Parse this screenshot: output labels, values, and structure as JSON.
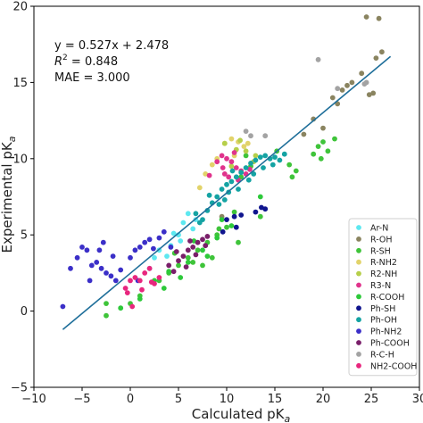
{
  "chart_data": {
    "type": "scatter",
    "title": "",
    "xlabel": "Calculated pK",
    "xlabel_sub": "a",
    "ylabel": "Experimental pK",
    "ylabel_sub": "a",
    "xlim": [
      -10,
      30
    ],
    "ylim": [
      -5,
      20
    ],
    "x_ticks": [
      -10,
      -5,
      0,
      5,
      10,
      15,
      20,
      25,
      30
    ],
    "y_ticks": [
      -5,
      0,
      5,
      10,
      15,
      20
    ],
    "grid": false,
    "legend_placement": "lower-right",
    "annotations": {
      "equation": "y = 0.527x + 2.478",
      "r2_prefix": "R",
      "r2_sup": "2",
      "r2_value": " = 0.848",
      "mae": "MAE = 3.000"
    },
    "fit_line": {
      "color": "#1f6f9a",
      "slope": 0.527,
      "intercept": 2.478,
      "x_range": [
        -7,
        27
      ]
    },
    "series": [
      {
        "name": "Ar-N",
        "color": "#5de8f0",
        "points": [
          [
            2.5,
            3.5
          ],
          [
            3.0,
            4.0
          ],
          [
            4.2,
            4.3
          ],
          [
            5.0,
            5.0
          ],
          [
            5.5,
            5.8
          ],
          [
            6.0,
            6.4
          ],
          [
            3.8,
            3.6
          ],
          [
            6.5,
            5.4
          ],
          [
            2.0,
            2.8
          ],
          [
            5.2,
            4.6
          ],
          [
            4.5,
            5.1
          ],
          [
            6.8,
            6.0
          ]
        ]
      },
      {
        "name": "R-OH",
        "color": "#8a8460",
        "points": [
          [
            24.5,
            19.3
          ],
          [
            25.8,
            19.2
          ],
          [
            26.1,
            17.0
          ],
          [
            25.5,
            16.6
          ],
          [
            24.0,
            15.6
          ],
          [
            23.0,
            15.0
          ],
          [
            22.0,
            14.5
          ],
          [
            21.0,
            14.0
          ],
          [
            24.8,
            14.2
          ],
          [
            19.0,
            12.6
          ],
          [
            20.0,
            12.0
          ],
          [
            18.0,
            11.6
          ],
          [
            21.5,
            13.6
          ],
          [
            25.2,
            14.3
          ],
          [
            22.5,
            14.8
          ],
          [
            9.5,
            6.2
          ]
        ]
      },
      {
        "name": "R-SH",
        "color": "#3fc43a",
        "points": [
          [
            -2.5,
            0.5
          ],
          [
            0,
            0.5
          ],
          [
            1,
            1
          ],
          [
            3,
            2
          ],
          [
            4,
            2.5
          ],
          [
            5,
            3
          ],
          [
            6,
            3.5
          ],
          [
            7,
            4
          ],
          [
            8,
            4.5
          ],
          [
            9,
            5
          ],
          [
            10,
            5.5
          ],
          [
            8.5,
            3.5
          ],
          [
            7.5,
            3.0
          ],
          [
            6.5,
            3.2
          ],
          [
            -2.5,
            -0.3
          ],
          [
            19.5,
            10.8
          ],
          [
            20.0,
            11.1
          ],
          [
            20.5,
            10.5
          ],
          [
            19.0,
            10.3
          ],
          [
            19.8,
            10.0
          ],
          [
            21.2,
            11.3
          ],
          [
            16.5,
            9.6
          ],
          [
            17.2,
            9.2
          ],
          [
            16.8,
            8.8
          ],
          [
            15.2,
            10.5
          ],
          [
            12.0,
            10.2
          ],
          [
            11.5,
            8.8
          ],
          [
            12.5,
            9.5
          ],
          [
            10.8,
            6.5
          ],
          [
            13.5,
            6.2
          ],
          [
            11.2,
            4.5
          ],
          [
            9.2,
            5.4
          ],
          [
            4.6,
            3.8
          ]
        ]
      },
      {
        "name": "R-NH2",
        "color": "#e2d36a",
        "points": [
          [
            9.0,
            10.0
          ],
          [
            9.8,
            11.0
          ],
          [
            10.5,
            11.3
          ],
          [
            11.2,
            11.1
          ],
          [
            8.5,
            9.6
          ],
          [
            7.8,
            9.0
          ],
          [
            10.8,
            10.2
          ],
          [
            11.8,
            10.8
          ],
          [
            12.2,
            11.0
          ],
          [
            7.2,
            8.1
          ]
        ]
      },
      {
        "name": "R2-NH",
        "color": "#b6cf4a",
        "points": [
          [
            9.8,
            11.0
          ],
          [
            11.0,
            10.6
          ],
          [
            12.0,
            10.5
          ],
          [
            13.0,
            10.2
          ],
          [
            10.5,
            9.5
          ],
          [
            12.8,
            9.8
          ],
          [
            11.4,
            11.2
          ]
        ]
      },
      {
        "name": "R3-N",
        "color": "#e0338c",
        "points": [
          [
            9.0,
            9.8
          ],
          [
            9.5,
            10.2
          ],
          [
            10.0,
            10.0
          ],
          [
            10.5,
            9.8
          ],
          [
            11.0,
            9.4
          ],
          [
            11.5,
            9.2
          ],
          [
            12.0,
            9.0
          ],
          [
            9.8,
            9.0
          ],
          [
            10.2,
            8.8
          ],
          [
            11.2,
            8.6
          ],
          [
            9.6,
            9.4
          ],
          [
            10.8,
            10.4
          ],
          [
            12.4,
            9.3
          ],
          [
            8.2,
            8.9
          ]
        ]
      },
      {
        "name": "R-COOH",
        "color": "#2dc93a",
        "points": [
          [
            1.0,
            0.8
          ],
          [
            2.5,
            2.0
          ],
          [
            4.0,
            2.6
          ],
          [
            6.0,
            3.2
          ],
          [
            7.5,
            4.0
          ],
          [
            9.0,
            4.8
          ],
          [
            10.5,
            5.6
          ],
          [
            13.5,
            7.5
          ],
          [
            6.6,
            4.6
          ],
          [
            8.0,
            3.6
          ],
          [
            -1.0,
            0.2
          ],
          [
            3.5,
            1.5
          ],
          [
            5.2,
            2.2
          ],
          [
            9.5,
            6.0
          ]
        ]
      },
      {
        "name": "Ph-SH",
        "color": "#10158e",
        "points": [
          [
            10.0,
            6.0
          ],
          [
            10.8,
            6.2
          ],
          [
            11.5,
            6.3
          ],
          [
            13.0,
            6.5
          ],
          [
            13.6,
            6.8
          ],
          [
            14.0,
            6.7
          ],
          [
            11.0,
            5.5
          ],
          [
            9.6,
            5.2
          ]
        ]
      },
      {
        "name": "Ph-OH",
        "color": "#14a3a3",
        "points": [
          [
            8.0,
            6.6
          ],
          [
            8.5,
            7.1
          ],
          [
            9.0,
            7.5
          ],
          [
            9.5,
            8.0
          ],
          [
            10.0,
            8.3
          ],
          [
            10.5,
            8.5
          ],
          [
            11.0,
            8.8
          ],
          [
            11.5,
            9.1
          ],
          [
            12.0,
            9.4
          ],
          [
            12.5,
            9.7
          ],
          [
            13.0,
            9.9
          ],
          [
            13.5,
            10.1
          ],
          [
            14.0,
            10.2
          ],
          [
            14.5,
            10.0
          ],
          [
            15.0,
            10.1
          ],
          [
            15.5,
            9.9
          ],
          [
            7.5,
            6.0
          ],
          [
            8.2,
            7.6
          ],
          [
            9.2,
            7.0
          ],
          [
            10.2,
            7.8
          ],
          [
            11.2,
            8.0
          ],
          [
            12.8,
            9.0
          ],
          [
            13.8,
            9.4
          ],
          [
            14.8,
            9.6
          ],
          [
            16.0,
            10.3
          ],
          [
            6.8,
            6.4
          ],
          [
            7.2,
            5.8
          ],
          [
            10.6,
            9.2
          ],
          [
            12.3,
            8.6
          ],
          [
            9.8,
            7.3
          ]
        ]
      },
      {
        "name": "Ph-NH2",
        "color": "#3b2fc8",
        "points": [
          [
            -7.0,
            0.3
          ],
          [
            -6.2,
            2.8
          ],
          [
            -5.5,
            3.5
          ],
          [
            -5.0,
            4.2
          ],
          [
            -4.5,
            4.0
          ],
          [
            -4.0,
            3.0
          ],
          [
            -3.5,
            3.2
          ],
          [
            -3.0,
            2.8
          ],
          [
            -2.5,
            2.5
          ],
          [
            -2.0,
            2.3
          ],
          [
            -1.5,
            2.0
          ],
          [
            -1.0,
            2.7
          ],
          [
            0,
            3.5
          ],
          [
            0.5,
            4.0
          ],
          [
            1.0,
            4.2
          ],
          [
            1.5,
            4.5
          ],
          [
            2.0,
            4.7
          ],
          [
            3.0,
            4.8
          ],
          [
            3.5,
            5.2
          ],
          [
            4.2,
            4.2
          ],
          [
            -3.2,
            4.0
          ],
          [
            -1.8,
            3.6
          ],
          [
            0.8,
            2.0
          ],
          [
            -4.2,
            2.0
          ],
          [
            2.4,
            4.1
          ],
          [
            -2.8,
            4.5
          ]
        ]
      },
      {
        "name": "Ph-COOH",
        "color": "#7a1f6a",
        "points": [
          [
            4.0,
            3.0
          ],
          [
            5.0,
            3.3
          ],
          [
            5.5,
            3.6
          ],
          [
            6.0,
            4.0
          ],
          [
            6.5,
            4.2
          ],
          [
            7.0,
            4.5
          ],
          [
            7.5,
            4.7
          ],
          [
            8.0,
            4.9
          ],
          [
            4.5,
            2.6
          ],
          [
            5.8,
            2.9
          ],
          [
            6.8,
            3.7
          ],
          [
            7.8,
            4.3
          ],
          [
            4.8,
            3.9
          ],
          [
            6.2,
            4.6
          ]
        ]
      },
      {
        "name": "R-C-H",
        "color": "#a3a3a3",
        "points": [
          [
            19.5,
            16.5
          ],
          [
            21.5,
            14.6
          ],
          [
            24.5,
            15.0
          ],
          [
            24.3,
            14.9
          ],
          [
            14.0,
            11.5
          ],
          [
            12.5,
            11.5
          ],
          [
            12.0,
            11.8
          ]
        ]
      },
      {
        "name": "NH2-COOH",
        "color": "#e8267e",
        "points": [
          [
            -0.5,
            1.5
          ],
          [
            0,
            2.0
          ],
          [
            0.5,
            2.2
          ],
          [
            1.0,
            2.0
          ],
          [
            1.5,
            2.5
          ],
          [
            2.0,
            2.8
          ],
          [
            2.5,
            1.8
          ],
          [
            3.0,
            2.2
          ],
          [
            1.2,
            1.4
          ],
          [
            0.2,
            0.3
          ],
          [
            -0.3,
            1.2
          ],
          [
            2.2,
            1.9
          ]
        ]
      }
    ]
  }
}
